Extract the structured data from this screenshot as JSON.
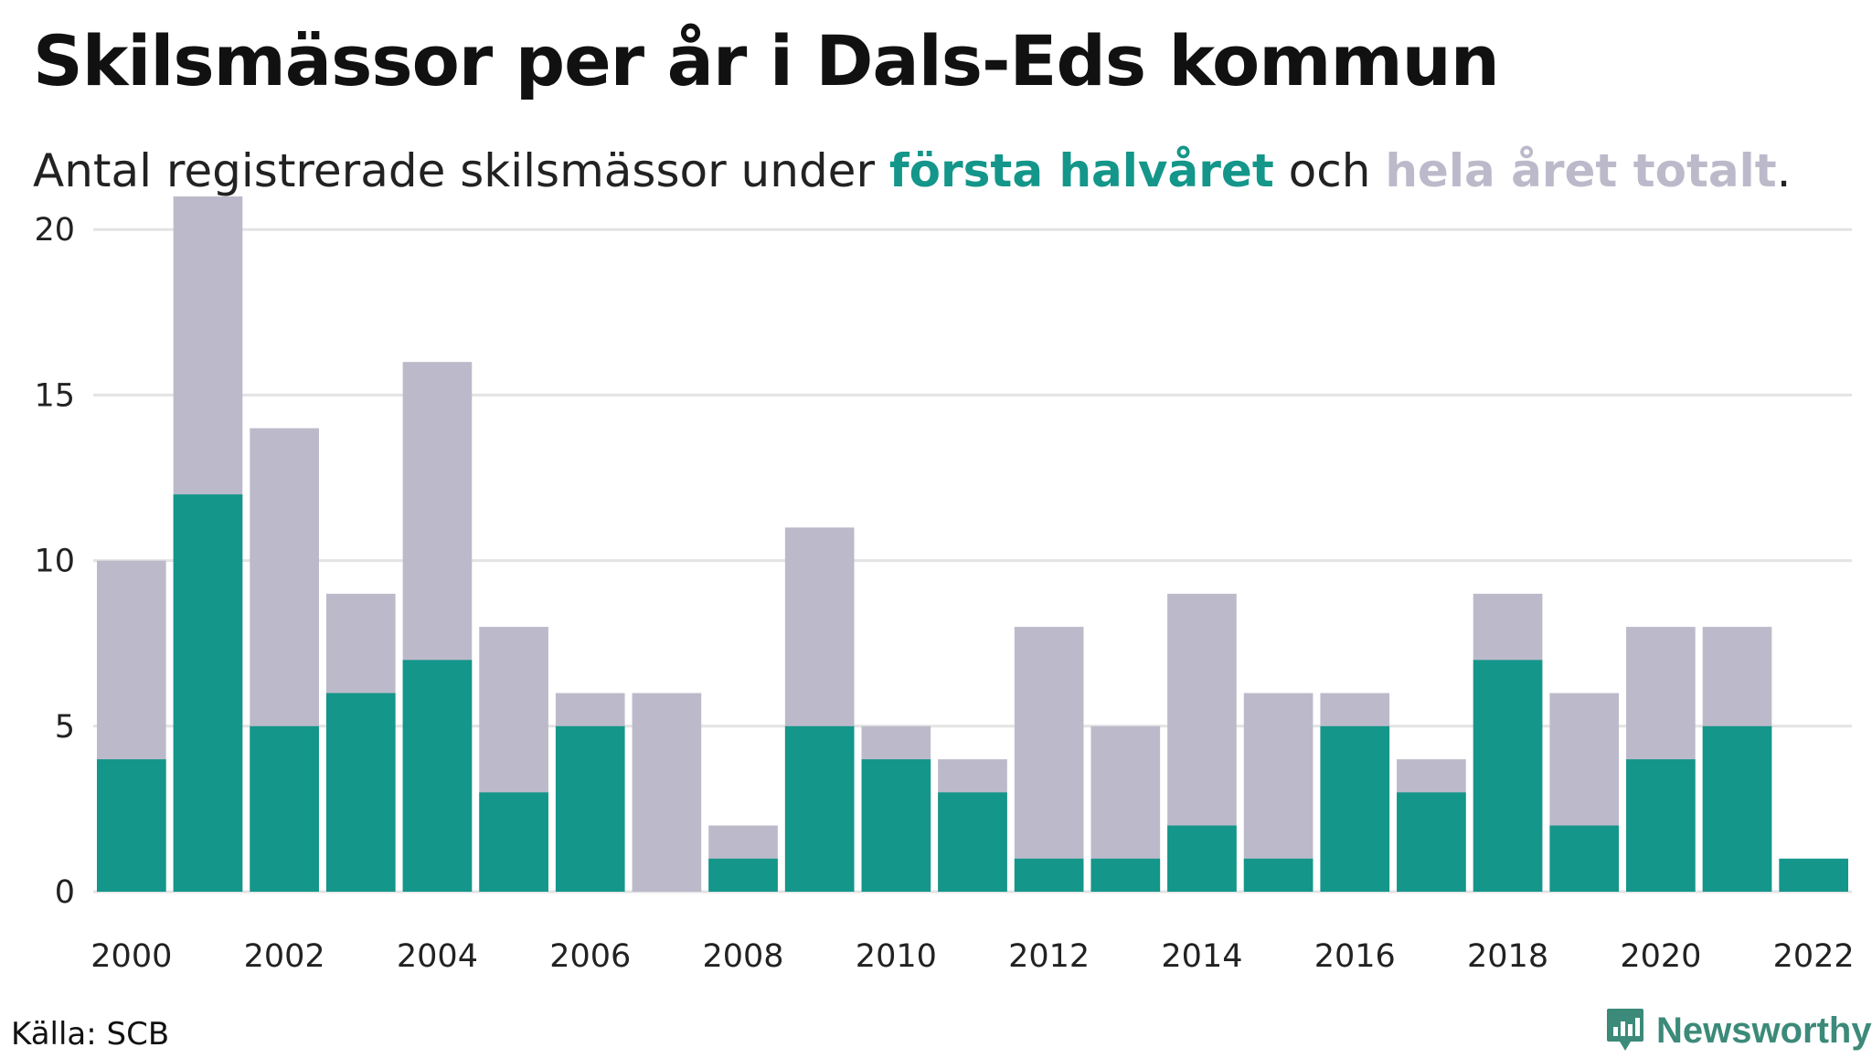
{
  "header": {
    "title": "Skilsmässor per år i Dals-Eds kommun",
    "subtitle_prefix": "Antal registrerade skilsmässor under ",
    "subtitle_first": "första halvåret",
    "subtitle_mid": " och ",
    "subtitle_total": "hela året totalt",
    "subtitle_suffix": "."
  },
  "colors": {
    "first_half": "#14968a",
    "full_year": "#bcbaca",
    "grid": "#e3e3e3",
    "brand": "#3c8a79"
  },
  "chart_data": {
    "type": "bar",
    "title": "Skilsmässor per år i Dals-Eds kommun",
    "xlabel": "",
    "ylabel": "",
    "ylim": [
      0,
      21
    ],
    "yticks": [
      0,
      5,
      10,
      15,
      20
    ],
    "xtick_labels": [
      "2000",
      "2002",
      "2004",
      "2006",
      "2008",
      "2010",
      "2012",
      "2014",
      "2016",
      "2018",
      "2020",
      "2022"
    ],
    "grid": true,
    "bars_overlapped": true,
    "categories": [
      "2000",
      "2001",
      "2002",
      "2003",
      "2004",
      "2005",
      "2006",
      "2007",
      "2008",
      "2009",
      "2010",
      "2011",
      "2012",
      "2013",
      "2014",
      "2015",
      "2016",
      "2017",
      "2018",
      "2019",
      "2020",
      "2021",
      "2022"
    ],
    "series": [
      {
        "name": "hela året totalt",
        "color": "#bcbaca",
        "values": [
          10,
          21,
          14,
          9,
          16,
          8,
          6,
          6,
          2,
          11,
          5,
          4,
          8,
          5,
          9,
          6,
          6,
          4,
          9,
          6,
          8,
          8,
          null
        ]
      },
      {
        "name": "första halvåret",
        "color": "#14968a",
        "values": [
          4,
          12,
          5,
          6,
          7,
          3,
          5,
          0,
          1,
          5,
          4,
          3,
          1,
          1,
          2,
          1,
          5,
          3,
          7,
          2,
          4,
          5,
          1
        ]
      }
    ]
  },
  "footer": {
    "source": "Källa: SCB",
    "brand": "Newsworthy",
    "brand_icon": "newsworthy-logo-icon"
  }
}
